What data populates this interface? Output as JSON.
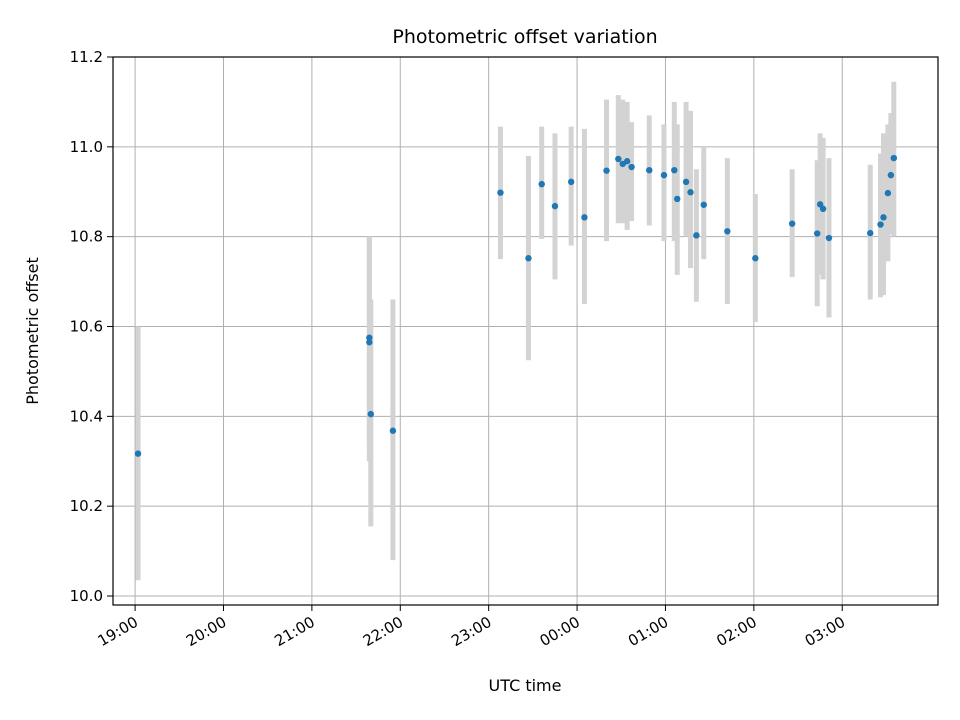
{
  "chart_data": {
    "type": "scatter",
    "title": "Photometric offset variation",
    "xlabel": "UTC time",
    "ylabel": "Photometric offset",
    "x_unit": "UTC clock time (HH:MM), timeline starting 19:00",
    "xlim": [
      "18:45",
      "28:05"
    ],
    "ylim": [
      9.98,
      11.2
    ],
    "x_ticks": [
      "19:00",
      "20:00",
      "21:00",
      "22:00",
      "23:00",
      "00:00",
      "01:00",
      "02:00",
      "03:00"
    ],
    "y_ticks": [
      10.0,
      10.2,
      10.4,
      10.6,
      10.8,
      11.0,
      11.2
    ],
    "y_tick_labels": [
      "10.0",
      "10.2",
      "10.4",
      "10.6",
      "10.8",
      "11.0",
      "11.2"
    ],
    "grid": true,
    "marker_color": "#1f77b4",
    "errorbar_color": "#d3d3d3",
    "series": [
      {
        "points": [
          {
            "t": "19:02",
            "y": 10.317,
            "ylo": 10.035,
            "yhi": 10.6
          },
          {
            "t": "21:39",
            "y": 10.565,
            "ylo": 10.34,
            "yhi": 10.8
          },
          {
            "t": "21:39",
            "y": 10.575,
            "ylo": 10.3,
            "yhi": 10.8
          },
          {
            "t": "21:40",
            "y": 10.405,
            "ylo": 10.155,
            "yhi": 10.66
          },
          {
            "t": "21:55",
            "y": 10.368,
            "ylo": 10.08,
            "yhi": 10.66
          },
          {
            "t": "23:08",
            "y": 10.898,
            "ylo": 10.75,
            "yhi": 11.045
          },
          {
            "t": "23:27",
            "y": 10.752,
            "ylo": 10.525,
            "yhi": 10.98
          },
          {
            "t": "23:36",
            "y": 10.917,
            "ylo": 10.795,
            "yhi": 11.045
          },
          {
            "t": "23:45",
            "y": 10.868,
            "ylo": 10.705,
            "yhi": 11.03
          },
          {
            "t": "23:56",
            "y": 10.922,
            "ylo": 10.78,
            "yhi": 11.045
          },
          {
            "t": "24:05",
            "y": 10.843,
            "ylo": 10.65,
            "yhi": 11.04
          },
          {
            "t": "24:20",
            "y": 10.947,
            "ylo": 10.79,
            "yhi": 11.105
          },
          {
            "t": "24:28",
            "y": 10.973,
            "ylo": 10.83,
            "yhi": 11.115
          },
          {
            "t": "24:31",
            "y": 10.962,
            "ylo": 10.83,
            "yhi": 11.105
          },
          {
            "t": "24:34",
            "y": 10.968,
            "ylo": 10.815,
            "yhi": 11.1
          },
          {
            "t": "24:37",
            "y": 10.955,
            "ylo": 10.835,
            "yhi": 11.055
          },
          {
            "t": "24:49",
            "y": 10.948,
            "ylo": 10.825,
            "yhi": 11.07
          },
          {
            "t": "24:59",
            "y": 10.937,
            "ylo": 10.79,
            "yhi": 11.05
          },
          {
            "t": "25:06",
            "y": 10.948,
            "ylo": 10.79,
            "yhi": 11.1
          },
          {
            "t": "25:08",
            "y": 10.884,
            "ylo": 10.715,
            "yhi": 11.05
          },
          {
            "t": "25:14",
            "y": 10.922,
            "ylo": 10.8,
            "yhi": 11.1
          },
          {
            "t": "25:17",
            "y": 10.899,
            "ylo": 10.73,
            "yhi": 11.08
          },
          {
            "t": "25:21",
            "y": 10.803,
            "ylo": 10.655,
            "yhi": 10.95
          },
          {
            "t": "25:26",
            "y": 10.871,
            "ylo": 10.75,
            "yhi": 11.0
          },
          {
            "t": "25:42",
            "y": 10.812,
            "ylo": 10.65,
            "yhi": 10.975
          },
          {
            "t": "26:01",
            "y": 10.752,
            "ylo": 10.61,
            "yhi": 10.895
          },
          {
            "t": "26:26",
            "y": 10.829,
            "ylo": 10.71,
            "yhi": 10.95
          },
          {
            "t": "26:43",
            "y": 10.807,
            "ylo": 10.645,
            "yhi": 10.97
          },
          {
            "t": "26:45",
            "y": 10.872,
            "ylo": 10.715,
            "yhi": 11.03
          },
          {
            "t": "26:47",
            "y": 10.862,
            "ylo": 10.705,
            "yhi": 11.02
          },
          {
            "t": "26:51",
            "y": 10.797,
            "ylo": 10.62,
            "yhi": 10.975
          },
          {
            "t": "27:19",
            "y": 10.808,
            "ylo": 10.66,
            "yhi": 10.96
          },
          {
            "t": "27:26",
            "y": 10.827,
            "ylo": 10.665,
            "yhi": 10.985
          },
          {
            "t": "27:28",
            "y": 10.843,
            "ylo": 10.67,
            "yhi": 11.03
          },
          {
            "t": "27:31",
            "y": 10.897,
            "ylo": 10.745,
            "yhi": 11.05
          },
          {
            "t": "27:33",
            "y": 10.937,
            "ylo": 10.805,
            "yhi": 11.075
          },
          {
            "t": "27:35",
            "y": 10.975,
            "ylo": 10.8,
            "yhi": 11.145
          }
        ]
      }
    ]
  }
}
